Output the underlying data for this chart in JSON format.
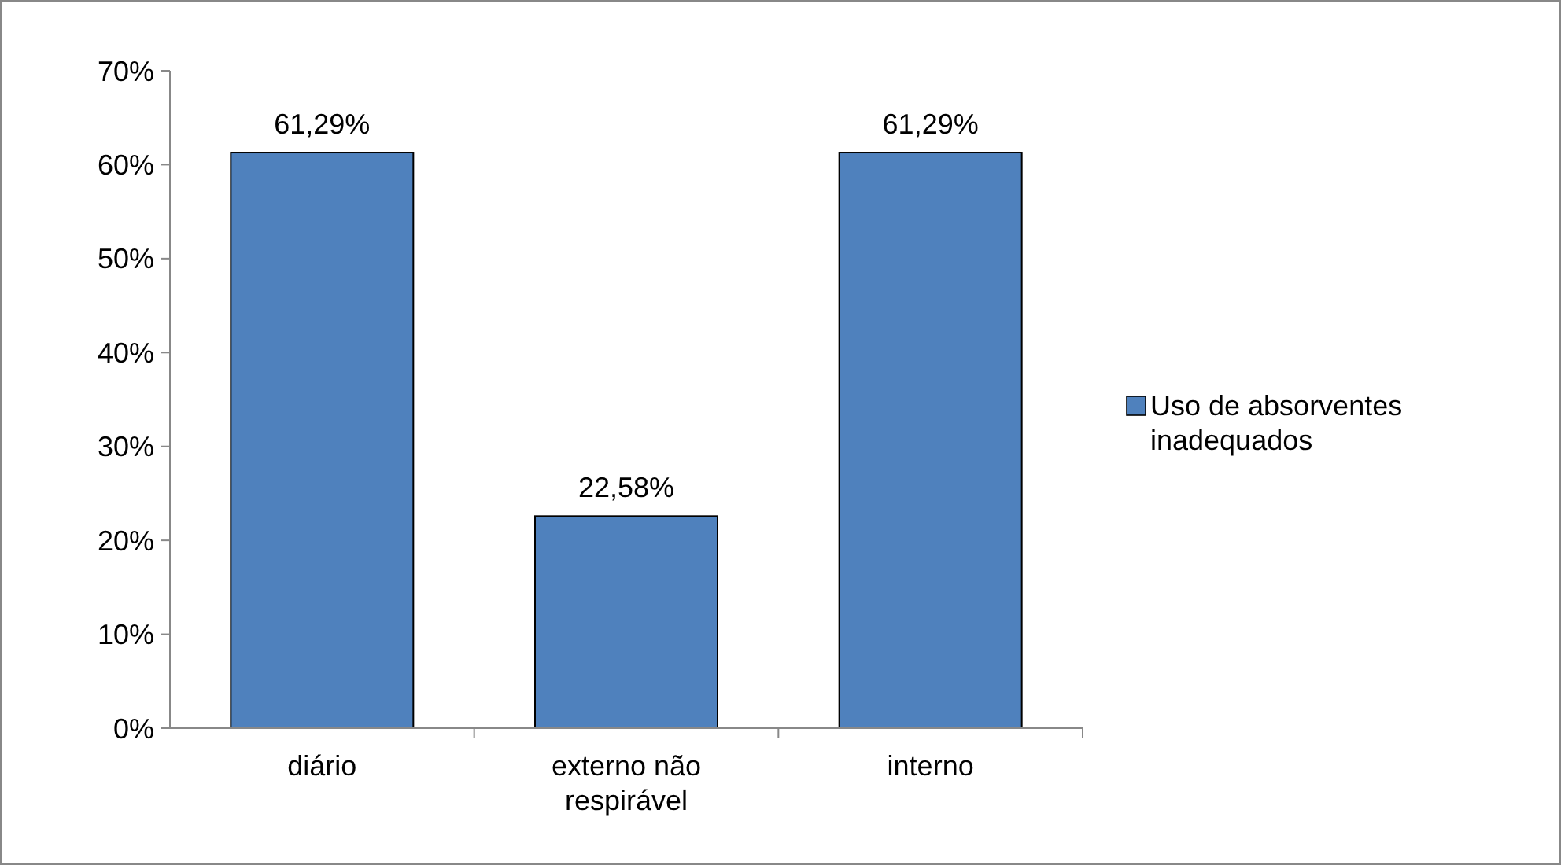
{
  "chart_data": {
    "type": "bar",
    "categories": [
      "diário",
      "externo não respirável",
      "interno"
    ],
    "series": [
      {
        "name": "Uso de absorventes inadequados",
        "color": "#4f81bd",
        "values": [
          61.29,
          22.58,
          61.29
        ],
        "value_labels": [
          "61,29%",
          "22,58%",
          "61,29%"
        ]
      }
    ],
    "ylim": [
      0,
      70
    ],
    "yticks": [
      {
        "value": 0,
        "label": "0%"
      },
      {
        "value": 10,
        "label": "10%"
      },
      {
        "value": 20,
        "label": "20%"
      },
      {
        "value": 30,
        "label": "30%"
      },
      {
        "value": 40,
        "label": "40%"
      },
      {
        "value": 50,
        "label": "50%"
      },
      {
        "value": 60,
        "label": "60%"
      },
      {
        "value": 70,
        "label": "70%"
      }
    ],
    "grid": false,
    "legend": "right"
  }
}
